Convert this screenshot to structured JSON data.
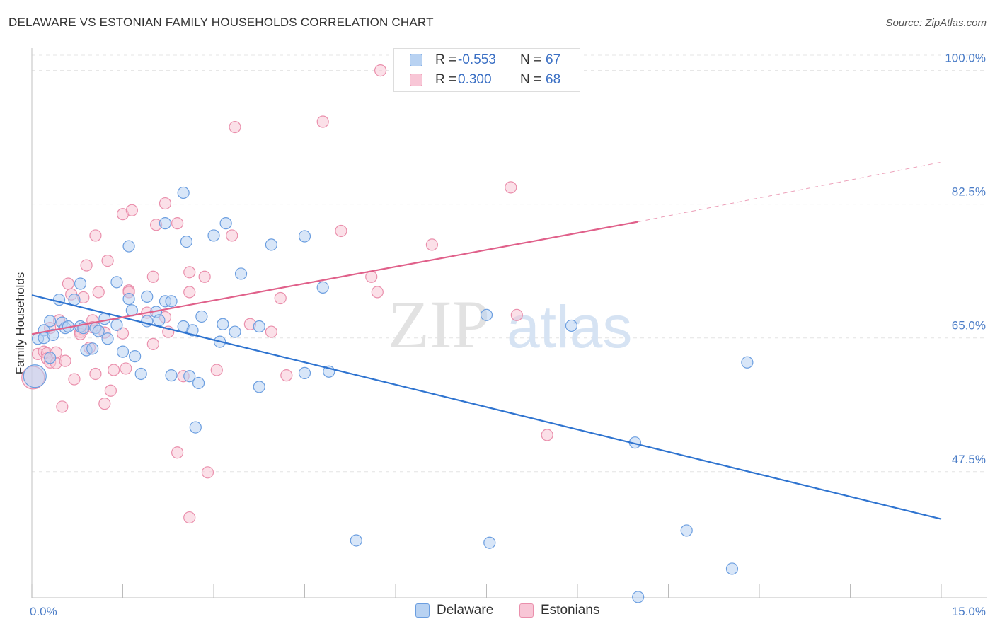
{
  "title": "DELAWARE VS ESTONIAN FAMILY HOUSEHOLDS CORRELATION CHART",
  "source": "Source: ZipAtlas.com",
  "watermark": {
    "zip": "ZIP",
    "atlas": "atlas"
  },
  "legend_top": [
    {
      "r_label": "R =",
      "r_value": "-0.553",
      "n_label": "N =",
      "n_value": "67"
    },
    {
      "r_label": "R =",
      "r_value": "0.300",
      "n_label": "N =",
      "n_value": "68"
    }
  ],
  "legend_bottom": [
    {
      "label": "Delaware"
    },
    {
      "label": "Estonians"
    }
  ],
  "colors": {
    "delaware_fill": "#b8d2f2",
    "delaware_stroke": "#6b9ee0",
    "delaware_line": "#2f74d0",
    "estonian_fill": "#f8c6d6",
    "estonian_stroke": "#ea8fac",
    "estonian_line": "#e0608a",
    "tick_label": "#4a7cc7",
    "grid": "#e4e4e4"
  },
  "chart_data": {
    "type": "scatter",
    "title": "DELAWARE VS ESTONIAN FAMILY HOUSEHOLDS CORRELATION CHART",
    "xlabel": "",
    "ylabel": "Family Households",
    "xlim": [
      0,
      15
    ],
    "ylim": [
      31,
      102
    ],
    "x_tick_labels": [
      "0.0%",
      "15.0%"
    ],
    "y_ticks": [
      47.5,
      65.0,
      82.5,
      100.0
    ],
    "y_tick_labels": [
      "47.5%",
      "65.0%",
      "82.5%",
      "100.0%"
    ],
    "grid": true,
    "legend_position": "top-center",
    "series": [
      {
        "name": "Delaware",
        "r": -0.553,
        "n": 67,
        "trend": {
          "x": [
            0.0,
            15.0
          ],
          "y": [
            70.6,
            41.3
          ],
          "style": "solid"
        },
        "points": [
          [
            0.05,
            60.0
          ],
          [
            0.1,
            64.9
          ],
          [
            0.2,
            66.0
          ],
          [
            0.2,
            65.0
          ],
          [
            0.3,
            67.2
          ],
          [
            0.3,
            62.4
          ],
          [
            0.35,
            65.4
          ],
          [
            0.45,
            70.0
          ],
          [
            0.5,
            67.0
          ],
          [
            0.55,
            66.3
          ],
          [
            0.6,
            66.5
          ],
          [
            0.7,
            70.0
          ],
          [
            0.8,
            66.5
          ],
          [
            0.8,
            72.1
          ],
          [
            0.85,
            66.3
          ],
          [
            0.9,
            63.4
          ],
          [
            1.0,
            63.6
          ],
          [
            1.05,
            66.3
          ],
          [
            1.1,
            65.9
          ],
          [
            1.2,
            67.5
          ],
          [
            1.25,
            64.9
          ],
          [
            1.4,
            66.7
          ],
          [
            1.4,
            72.3
          ],
          [
            1.5,
            63.2
          ],
          [
            1.6,
            77.0
          ],
          [
            1.6,
            70.1
          ],
          [
            1.65,
            68.6
          ],
          [
            1.7,
            62.6
          ],
          [
            1.8,
            60.3
          ],
          [
            1.9,
            67.2
          ],
          [
            1.9,
            70.4
          ],
          [
            2.05,
            68.4
          ],
          [
            2.1,
            67.3
          ],
          [
            2.2,
            69.8
          ],
          [
            2.2,
            80.0
          ],
          [
            2.3,
            69.8
          ],
          [
            2.3,
            60.1
          ],
          [
            2.5,
            84.0
          ],
          [
            2.5,
            66.5
          ],
          [
            2.55,
            77.6
          ],
          [
            2.6,
            60.0
          ],
          [
            2.65,
            66.0
          ],
          [
            2.7,
            53.3
          ],
          [
            2.75,
            59.1
          ],
          [
            2.8,
            67.8
          ],
          [
            3.0,
            78.4
          ],
          [
            3.1,
            64.5
          ],
          [
            3.15,
            66.8
          ],
          [
            3.2,
            80.0
          ],
          [
            3.35,
            65.8
          ],
          [
            3.45,
            73.4
          ],
          [
            3.75,
            66.5
          ],
          [
            3.75,
            58.6
          ],
          [
            3.95,
            77.2
          ],
          [
            4.5,
            78.3
          ],
          [
            4.5,
            60.4
          ],
          [
            4.8,
            71.6
          ],
          [
            4.9,
            60.6
          ],
          [
            5.35,
            38.5
          ],
          [
            7.5,
            68.0
          ],
          [
            7.55,
            38.2
          ],
          [
            8.9,
            66.6
          ],
          [
            9.95,
            51.3
          ],
          [
            10.8,
            39.8
          ],
          [
            11.55,
            34.8
          ],
          [
            11.8,
            61.8
          ],
          [
            10.0,
            31.1
          ]
        ]
      },
      {
        "name": "Estonians",
        "r": 0.3,
        "n": 68,
        "trend": {
          "x": [
            0.0,
            10.0
          ],
          "y": [
            65.5,
            80.2
          ],
          "style": "solid",
          "dashed_extension_to": [
            15.0,
            88.0
          ]
        },
        "points": [
          [
            0.02,
            59.8
          ],
          [
            0.1,
            62.9
          ],
          [
            0.2,
            63.2
          ],
          [
            0.25,
            63.0
          ],
          [
            0.25,
            62.3
          ],
          [
            0.3,
            61.8
          ],
          [
            0.3,
            66.3
          ],
          [
            0.4,
            61.7
          ],
          [
            0.4,
            63.1
          ],
          [
            0.45,
            67.3
          ],
          [
            0.5,
            56.0
          ],
          [
            0.55,
            62.0
          ],
          [
            0.6,
            72.1
          ],
          [
            0.65,
            70.7
          ],
          [
            0.7,
            59.6
          ],
          [
            0.8,
            65.8
          ],
          [
            0.85,
            66.1
          ],
          [
            0.85,
            70.3
          ],
          [
            0.9,
            74.5
          ],
          [
            0.95,
            63.7
          ],
          [
            1.0,
            67.3
          ],
          [
            1.0,
            66.4
          ],
          [
            1.05,
            60.3
          ],
          [
            1.05,
            78.4
          ],
          [
            1.1,
            71.0
          ],
          [
            1.2,
            56.4
          ],
          [
            1.2,
            65.7
          ],
          [
            1.25,
            75.1
          ],
          [
            1.3,
            58.1
          ],
          [
            1.35,
            60.8
          ],
          [
            1.5,
            65.6
          ],
          [
            1.5,
            81.2
          ],
          [
            1.55,
            61.0
          ],
          [
            1.6,
            71.2
          ],
          [
            1.6,
            71.0
          ],
          [
            1.65,
            81.7
          ],
          [
            1.9,
            68.3
          ],
          [
            2.0,
            64.2
          ],
          [
            2.0,
            73.0
          ],
          [
            2.05,
            79.8
          ],
          [
            2.2,
            67.7
          ],
          [
            2.2,
            82.6
          ],
          [
            2.25,
            65.8
          ],
          [
            2.4,
            80.0
          ],
          [
            2.4,
            50.0
          ],
          [
            2.5,
            60.0
          ],
          [
            2.6,
            73.6
          ],
          [
            2.6,
            71.0
          ],
          [
            2.6,
            41.5
          ],
          [
            2.85,
            73.0
          ],
          [
            2.9,
            47.4
          ],
          [
            3.05,
            60.8
          ],
          [
            3.3,
            78.4
          ],
          [
            3.35,
            92.6
          ],
          [
            3.6,
            66.8
          ],
          [
            3.95,
            65.8
          ],
          [
            4.1,
            70.2
          ],
          [
            4.2,
            60.1
          ],
          [
            4.8,
            93.3
          ],
          [
            5.1,
            79.0
          ],
          [
            5.6,
            73.0
          ],
          [
            5.7,
            71.0
          ],
          [
            5.75,
            100.0
          ],
          [
            6.6,
            77.2
          ],
          [
            7.9,
            84.7
          ],
          [
            8.0,
            68.0
          ],
          [
            8.5,
            52.3
          ],
          [
            0.8,
            65.5
          ]
        ]
      }
    ]
  }
}
